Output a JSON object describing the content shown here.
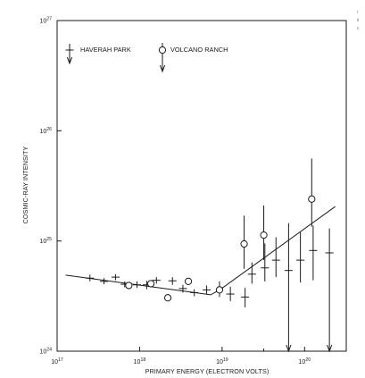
{
  "chart_data": {
    "type": "scatter",
    "title": "",
    "xlabel": "PRIMARY ENERGY (ELECTRON VOLTS)",
    "ylabel": "COSMIC-RAY INTENSITY",
    "x_scale": "log",
    "y_scale": "log",
    "xlim": [
      1e+17,
      3.2e+20
    ],
    "ylim": [
      1e+24,
      1e+27
    ],
    "grid": false,
    "legend_placement": "top-left, inside",
    "x_ticks": [
      {
        "value": 1e+17,
        "base": "10",
        "exp": "17"
      },
      {
        "value": 1e+18,
        "base": "10",
        "exp": "18"
      },
      {
        "value": 1e+19,
        "base": "10",
        "exp": "19"
      },
      {
        "value": 1e+20,
        "base": "10",
        "exp": "20"
      }
    ],
    "x_minor_ticks": [
      3.2e+19,
      3.2e+20
    ],
    "y_ticks": [
      {
        "value": 1e+24,
        "base": "10",
        "exp": "24"
      },
      {
        "value": 1e+25,
        "base": "10",
        "exp": "25"
      },
      {
        "value": 1e+26,
        "base": "10",
        "exp": "26"
      },
      {
        "value": 1e+27,
        "base": "10",
        "exp": "27"
      }
    ],
    "series": [
      {
        "name": "HAVERAH PARK",
        "marker": "cross",
        "points": [
          {
            "x": 2.5e+17,
            "y": 4.6e+24,
            "err_low": 4.3e+24,
            "err_high": 4.95e+24
          },
          {
            "x": 3.7e+17,
            "y": 4.3e+24,
            "err_low": 4.05e+24,
            "err_high": 4.6e+24
          },
          {
            "x": 5.1e+17,
            "y": 4.7e+24,
            "err_low": 4.4e+24,
            "err_high": 5e+24
          },
          {
            "x": 6.6e+17,
            "y": 4.05e+24,
            "err_low": 3.8e+24,
            "err_high": 4.3e+24
          },
          {
            "x": 9.3e+17,
            "y": 4e+24,
            "err_low": 3.75e+24,
            "err_high": 4.3e+24
          },
          {
            "x": 1.22e+18,
            "y": 4e+24,
            "err_low": 3.65e+24,
            "err_high": 4.35e+24
          },
          {
            "x": 1.6e+18,
            "y": 4.4e+24,
            "err_low": 4.1e+24,
            "err_high": 4.7e+24
          },
          {
            "x": 2.5e+18,
            "y": 4.35e+24,
            "err_low": 4e+24,
            "err_high": 4.7e+24
          },
          {
            "x": 3.35e+18,
            "y": 3.7e+24,
            "err_low": 3.4e+24,
            "err_high": 4e+24
          },
          {
            "x": 4.6e+18,
            "y": 3.4e+24,
            "err_low": 3.15e+24,
            "err_high": 3.65e+24
          },
          {
            "x": 6.5e+18,
            "y": 3.6e+24,
            "err_low": 3.3e+24,
            "err_high": 3.95e+24
          },
          {
            "x": 1.26e+19,
            "y": 3.3e+24,
            "err_low": 2.85e+24,
            "err_high": 3.85e+24
          },
          {
            "x": 1.9e+19,
            "y": 3.1e+24,
            "err_low": 2.5e+24,
            "err_high": 3.75e+24
          },
          {
            "x": 2.3e+19,
            "y": 5e+24,
            "err_low": 4.1e+24,
            "err_high": 6.4e+24
          },
          {
            "x": 3.3e+19,
            "y": 5.7e+24,
            "err_low": 4.3e+24,
            "err_high": 9.5e+24
          },
          {
            "x": 4.5e+19,
            "y": 6.7e+24,
            "err_low": 4.7e+24,
            "err_high": 1.08e+25
          },
          {
            "x": 6.4e+19,
            "y": 5.4e+24,
            "err_low": 3.2e+24,
            "err_high": 1.45e+25,
            "arrow": true
          },
          {
            "x": 8.9e+19,
            "y": 6.7e+24,
            "err_low": 4.2e+24,
            "err_high": 1.2e+25
          },
          {
            "x": 1.27e+20,
            "y": 8.2e+24,
            "err_low": 4.4e+24,
            "err_high": 1.38e+25
          },
          {
            "x": 2e+20,
            "y": 7.8e+24,
            "err_low": 4.4e+24,
            "err_high": 1.3e+25,
            "arrow": true
          }
        ]
      },
      {
        "name": "VOLCANO RANCH",
        "marker": "open-circle",
        "points": [
          {
            "x": 7.4e+17,
            "y": 3.95e+24,
            "err_low": 3.65e+24,
            "err_high": 4.25e+24
          },
          {
            "x": 1.37e+18,
            "y": 4.1e+24,
            "err_low": 3.8e+24,
            "err_high": 4.4e+24
          },
          {
            "x": 2.2e+18,
            "y": 3.05e+24,
            "err_low": 2.85e+24,
            "err_high": 3.25e+24
          },
          {
            "x": 3.9e+18,
            "y": 4.3e+24,
            "err_low": 4e+24,
            "err_high": 4.6e+24
          },
          {
            "x": 9.3e+18,
            "y": 3.6e+24,
            "err_low": 3.1e+24,
            "err_high": 4.3e+24
          },
          {
            "x": 1.85e+19,
            "y": 9.4e+24,
            "err_low": 5.6e+24,
            "err_high": 1.7e+25
          },
          {
            "x": 3.2e+19,
            "y": 1.13e+25,
            "err_low": 6.7e+24,
            "err_high": 2.1e+25
          },
          {
            "x": 1.22e+20,
            "y": 2.4e+25,
            "err_low": 1.35e+25,
            "err_high": 5.6e+25
          }
        ]
      }
    ],
    "fit_line": [
      {
        "x": 1.27e+17,
        "y": 4.9e+24
      },
      {
        "x": 7.3e+18,
        "y": 3.25e+24
      },
      {
        "x": 9.6e+18,
        "y": 3.65e+24
      },
      {
        "x": 2.35e+20,
        "y": 2.05e+25
      }
    ]
  }
}
